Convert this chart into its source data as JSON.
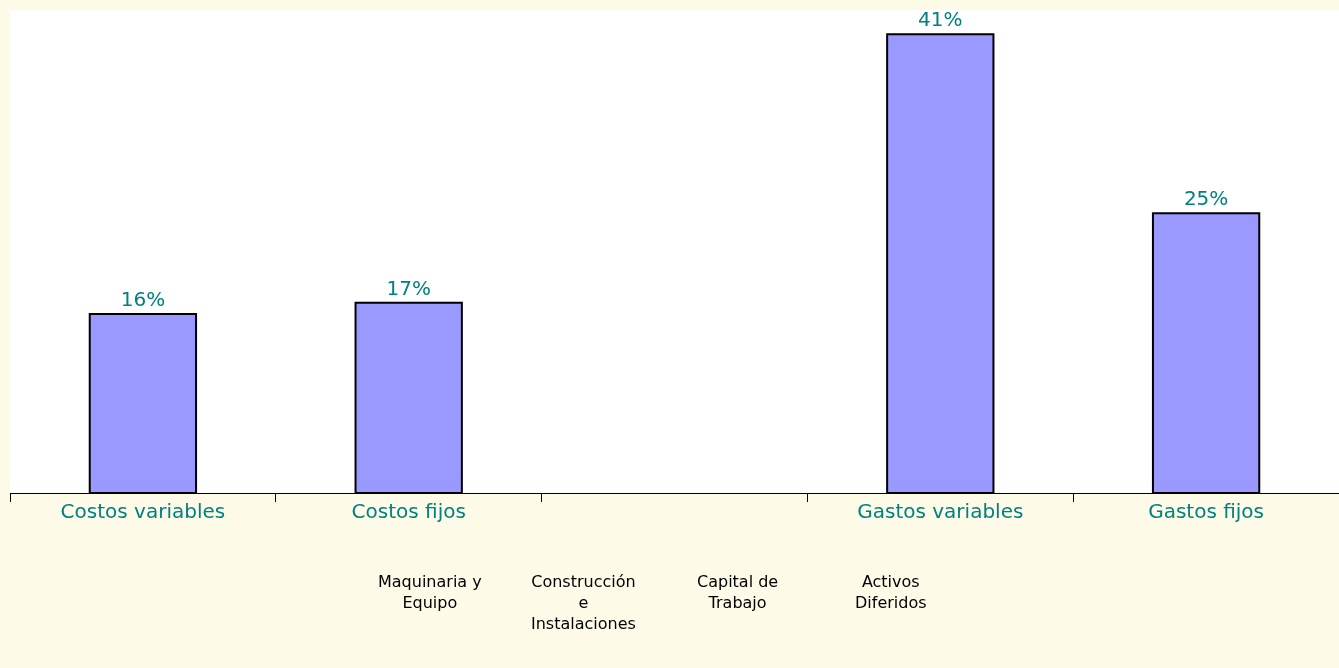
{
  "chart_data": {
    "type": "bar",
    "categories": [
      "Costos variables",
      "Costos fijos",
      null,
      "Gastos variables",
      "Gastos fijos"
    ],
    "values": [
      16,
      17,
      null,
      41,
      25
    ],
    "value_labels": [
      "16%",
      "17%",
      null,
      "41%",
      "25%"
    ],
    "color": "#9999ff",
    "tick_labels": "x",
    "annotations": [
      "Maquinaria y\nEquipo",
      "Construcción\ne\nInstalaciones",
      "Capital de\nTrabajo",
      "Activos\nDiferidos"
    ]
  }
}
